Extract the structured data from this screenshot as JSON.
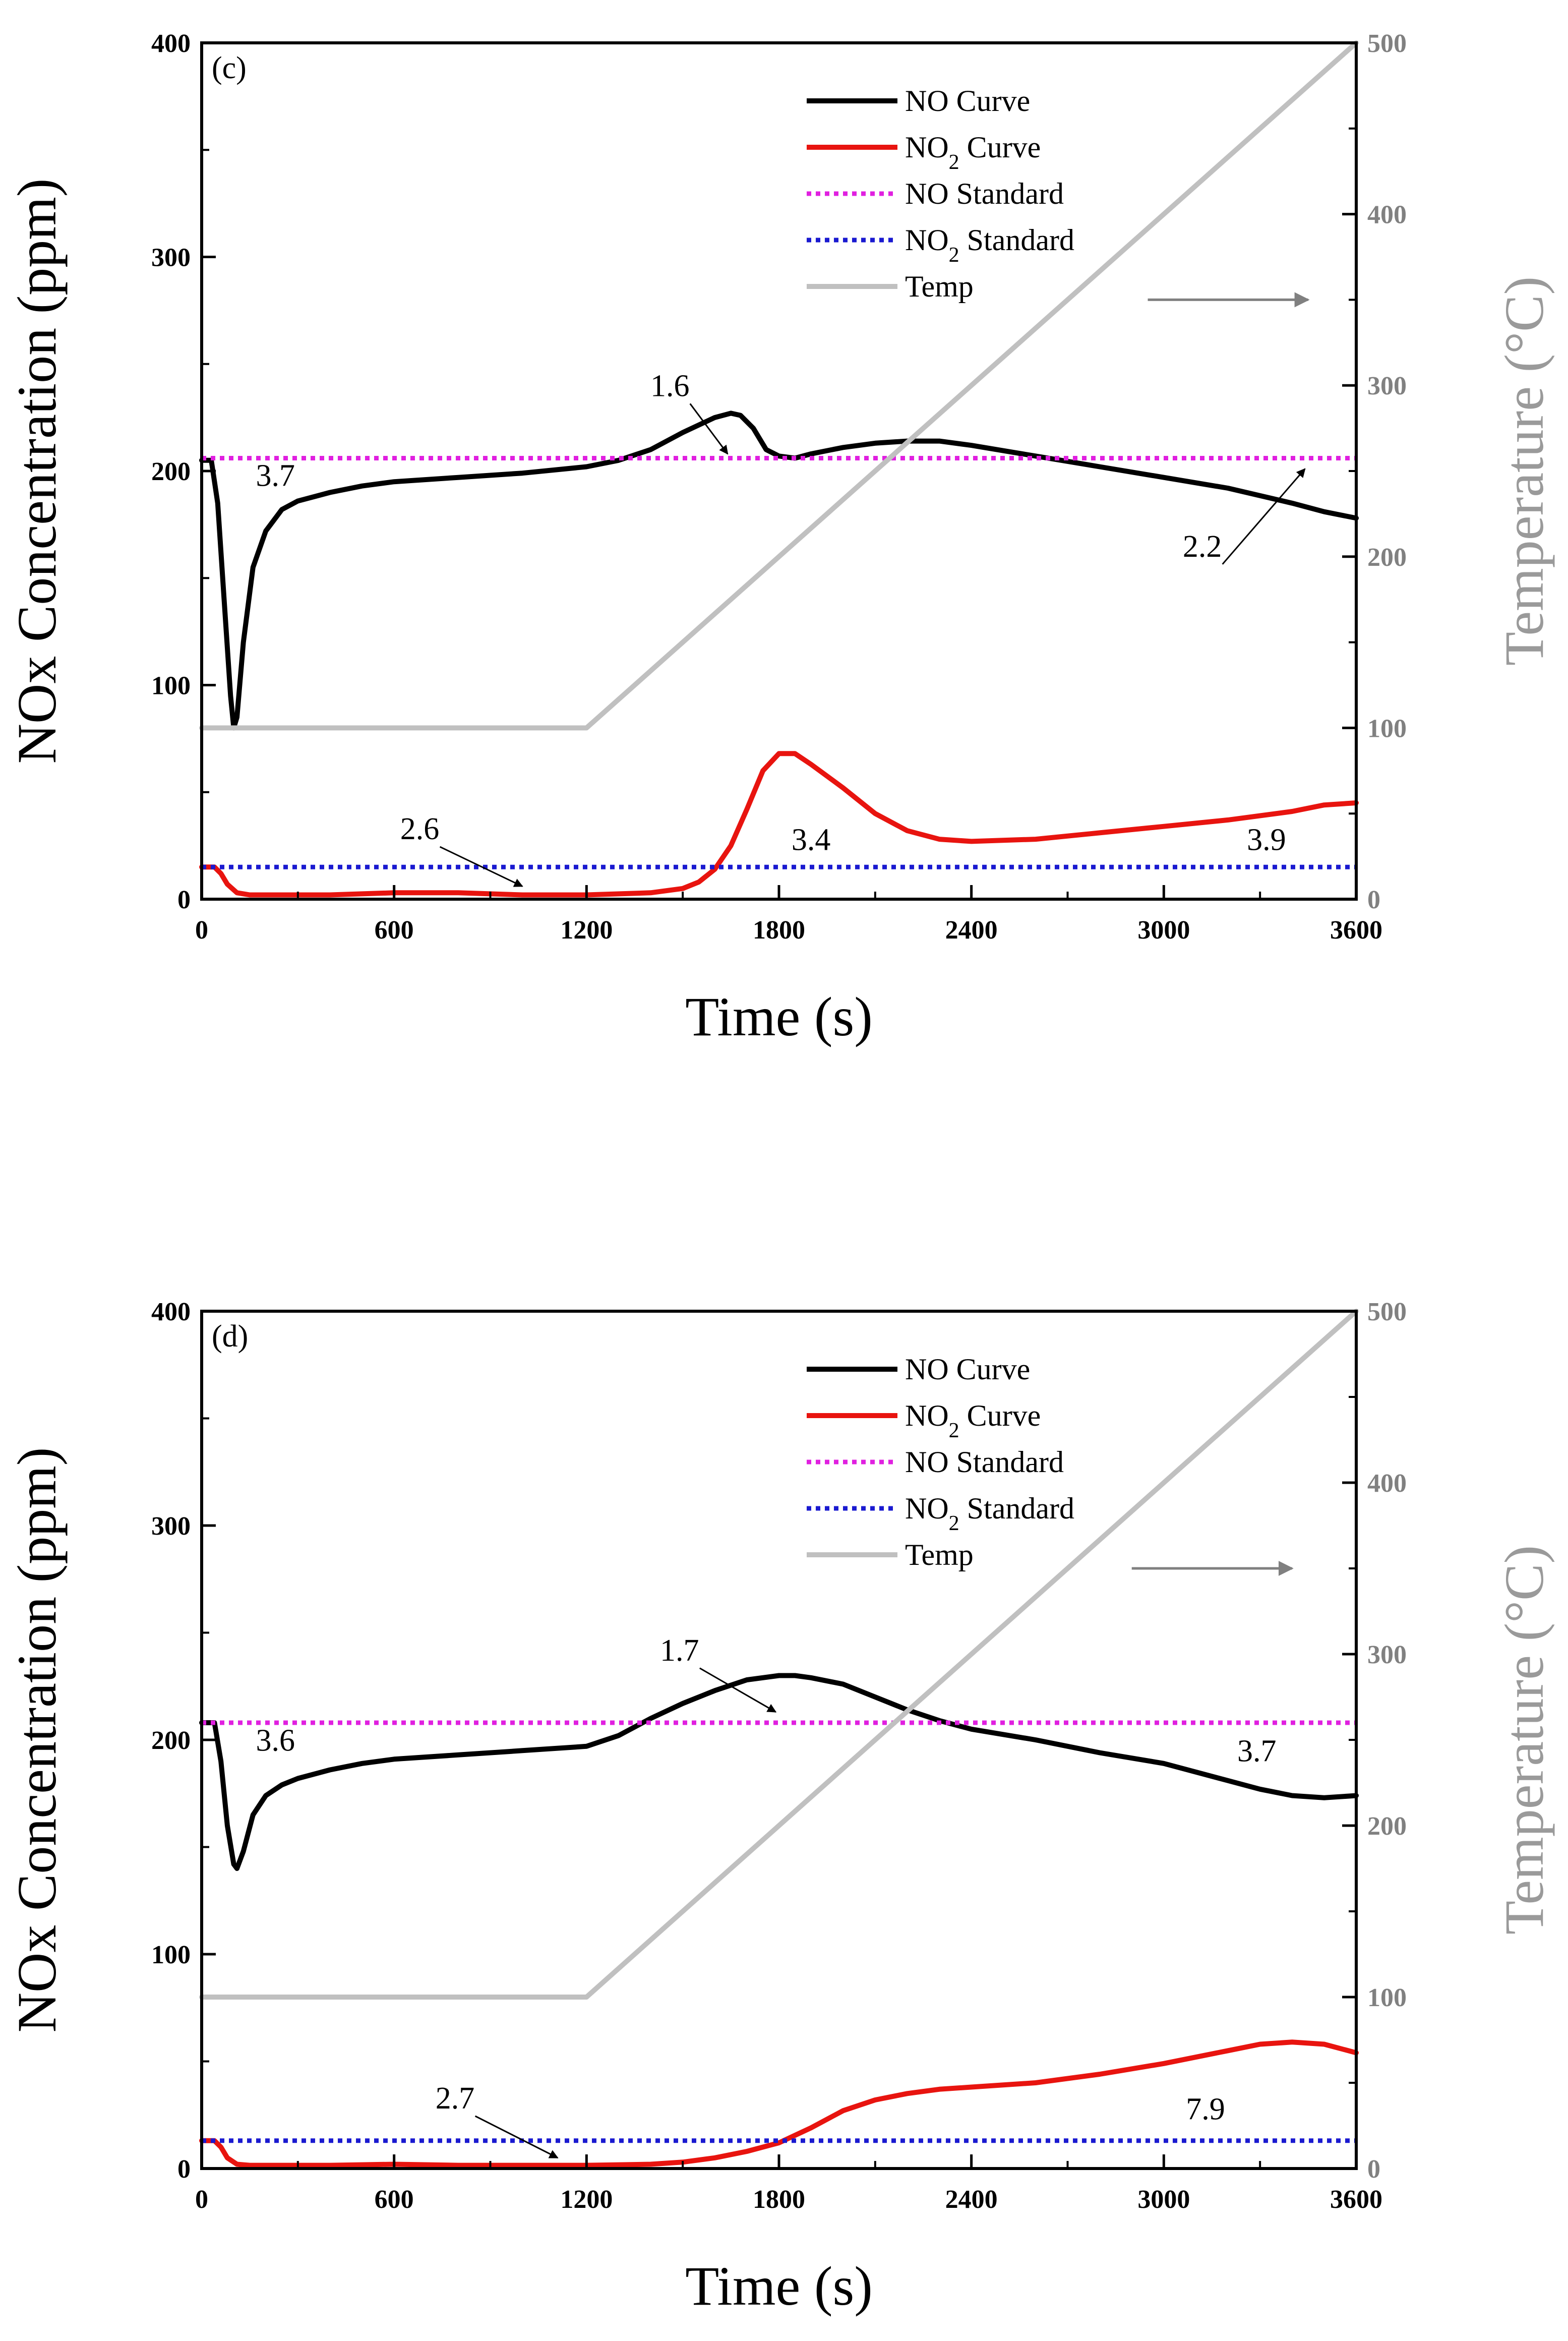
{
  "chart_data": [
    {
      "type": "line",
      "panel_label": "(c)",
      "xlabel": "Time (s)",
      "ylabel": "NOx Concentration (ppm)",
      "y2label": "Temperature (°C)",
      "x_ticks": [
        "0",
        "600",
        "1200",
        "1800",
        "2400",
        "3000",
        "3600"
      ],
      "y_ticks": [
        "0",
        "100",
        "200",
        "300",
        "400"
      ],
      "y2_ticks": [
        "0",
        "100",
        "200",
        "300",
        "400",
        "500"
      ],
      "xlim": [
        0,
        3600
      ],
      "ylim": [
        0,
        400
      ],
      "y2lim": [
        0,
        500
      ],
      "legend": {
        "position": "top-center",
        "entries": [
          {
            "name": "NO Curve",
            "color": "#000000",
            "style": "solid"
          },
          {
            "name": "NO₂ Curve",
            "color": "#e8140f",
            "style": "solid"
          },
          {
            "name": "NO Standard",
            "color": "#e020e0",
            "style": "dotted"
          },
          {
            "name": "NO₂ Standard",
            "color": "#1a1ad0",
            "style": "dotted"
          },
          {
            "name": "Temp",
            "color": "#c0c0c0",
            "style": "solid"
          }
        ]
      },
      "series": [
        {
          "name": "NO Curve",
          "axis": "left",
          "color": "#000000",
          "x": [
            0,
            30,
            50,
            70,
            90,
            100,
            110,
            130,
            160,
            200,
            250,
            300,
            400,
            500,
            600,
            800,
            1000,
            1200,
            1300,
            1400,
            1500,
            1600,
            1650,
            1680,
            1720,
            1760,
            1800,
            1850,
            1900,
            2000,
            2100,
            2200,
            2300,
            2400,
            2600,
            2800,
            3000,
            3200,
            3400,
            3500,
            3600
          ],
          "y": [
            205,
            205,
            185,
            140,
            95,
            80,
            85,
            120,
            155,
            172,
            182,
            186,
            190,
            193,
            195,
            197,
            199,
            202,
            205,
            210,
            218,
            225,
            227,
            226,
            220,
            210,
            207,
            206,
            208,
            211,
            213,
            214,
            214,
            212,
            207,
            202,
            197,
            192,
            185,
            181,
            178
          ]
        },
        {
          "name": "NO₂ Curve",
          "axis": "left",
          "color": "#e8140f",
          "x": [
            0,
            40,
            60,
            80,
            110,
            150,
            200,
            400,
            600,
            800,
            1000,
            1200,
            1400,
            1500,
            1550,
            1600,
            1650,
            1700,
            1750,
            1800,
            1850,
            1900,
            2000,
            2100,
            2200,
            2300,
            2400,
            2600,
            2800,
            3000,
            3200,
            3400,
            3500,
            3600
          ],
          "y": [
            15,
            15,
            12,
            7,
            3,
            2,
            2,
            2,
            3,
            3,
            2,
            2,
            3,
            5,
            8,
            14,
            25,
            42,
            60,
            68,
            68,
            63,
            52,
            40,
            32,
            28,
            27,
            28,
            31,
            34,
            37,
            41,
            44,
            45
          ]
        },
        {
          "name": "NO Standard",
          "axis": "left",
          "color": "#e020e0",
          "x": [
            0,
            3600
          ],
          "y": [
            206,
            206
          ]
        },
        {
          "name": "NO₂ Standard",
          "axis": "left",
          "color": "#1a1ad0",
          "x": [
            0,
            3600
          ],
          "y": [
            15,
            15
          ]
        },
        {
          "name": "Temp",
          "axis": "right",
          "color": "#c0c0c0",
          "x": [
            0,
            1200,
            3600
          ],
          "y": [
            100,
            100,
            500
          ]
        }
      ],
      "annotations": [
        {
          "text": "3.7",
          "x": 230,
          "y": 193
        },
        {
          "text": "1.6",
          "x": 1460,
          "y": 235,
          "arrow_to": [
            1640,
            208
          ]
        },
        {
          "text": "2.2",
          "x": 3120,
          "y": 160,
          "arrow_to": [
            3440,
            201
          ]
        },
        {
          "text": "2.6",
          "x": 680,
          "y": 28,
          "arrow_to": [
            1000,
            6
          ]
        },
        {
          "text": "3.4",
          "x": 1900,
          "y": 23
        },
        {
          "text": "3.9",
          "x": 3320,
          "y": 23
        }
      ],
      "arrow_legend": {
        "from": [
          2950,
          350
        ],
        "to": [
          3450,
          350
        ],
        "axis": "right",
        "color": "#808080"
      }
    },
    {
      "type": "line",
      "panel_label": "(d)",
      "xlabel": "Time (s)",
      "ylabel": "NOx Concentration (ppm)",
      "y2label": "Temperature (°C)",
      "x_ticks": [
        "0",
        "600",
        "1200",
        "1800",
        "2400",
        "3000",
        "3600"
      ],
      "y_ticks": [
        "0",
        "100",
        "200",
        "300",
        "400"
      ],
      "y2_ticks": [
        "0",
        "100",
        "200",
        "300",
        "400",
        "500"
      ],
      "xlim": [
        0,
        3600
      ],
      "ylim": [
        0,
        400
      ],
      "y2lim": [
        0,
        500
      ],
      "legend": {
        "position": "top-center",
        "entries": [
          {
            "name": "NO Curve",
            "color": "#000000",
            "style": "solid"
          },
          {
            "name": "NO₂ Curve",
            "color": "#e8140f",
            "style": "solid"
          },
          {
            "name": "NO Standard",
            "color": "#e020e0",
            "style": "dotted"
          },
          {
            "name": "NO₂ Standard",
            "color": "#1a1ad0",
            "style": "dotted"
          },
          {
            "name": "Temp",
            "color": "#c0c0c0",
            "style": "solid"
          }
        ]
      },
      "series": [
        {
          "name": "NO Curve",
          "axis": "left",
          "color": "#000000",
          "x": [
            0,
            40,
            60,
            80,
            100,
            110,
            130,
            160,
            200,
            250,
            300,
            400,
            500,
            600,
            800,
            1000,
            1200,
            1300,
            1400,
            1500,
            1600,
            1700,
            1800,
            1850,
            1900,
            2000,
            2100,
            2200,
            2300,
            2400,
            2600,
            2800,
            3000,
            3200,
            3300,
            3400,
            3500,
            3600
          ],
          "y": [
            208,
            208,
            190,
            160,
            142,
            140,
            148,
            165,
            174,
            179,
            182,
            186,
            189,
            191,
            193,
            195,
            197,
            202,
            210,
            217,
            223,
            228,
            230,
            230,
            229,
            226,
            220,
            214,
            209,
            205,
            200,
            194,
            189,
            181,
            177,
            174,
            173,
            174
          ]
        },
        {
          "name": "NO₂ Curve",
          "axis": "left",
          "color": "#e8140f",
          "x": [
            0,
            40,
            60,
            80,
            110,
            150,
            200,
            400,
            600,
            800,
            1000,
            1200,
            1400,
            1500,
            1600,
            1700,
            1800,
            1900,
            2000,
            2100,
            2200,
            2300,
            2400,
            2600,
            2800,
            3000,
            3200,
            3300,
            3400,
            3500,
            3600
          ],
          "y": [
            13,
            13,
            10,
            5,
            2,
            1.5,
            1.5,
            1.5,
            2,
            1.5,
            1.5,
            1.5,
            2,
            3,
            5,
            8,
            12,
            19,
            27,
            32,
            35,
            37,
            38,
            40,
            44,
            49,
            55,
            58,
            59,
            58,
            54
          ]
        },
        {
          "name": "NO Standard",
          "axis": "left",
          "color": "#e020e0",
          "x": [
            0,
            3600
          ],
          "y": [
            208,
            208
          ]
        },
        {
          "name": "NO₂ Standard",
          "axis": "left",
          "color": "#1a1ad0",
          "x": [
            0,
            3600
          ],
          "y": [
            13,
            13
          ]
        },
        {
          "name": "Temp",
          "axis": "right",
          "color": "#c0c0c0",
          "x": [
            0,
            1200,
            3600
          ],
          "y": [
            100,
            100,
            500
          ]
        }
      ],
      "annotations": [
        {
          "text": "3.6",
          "x": 230,
          "y": 195
        },
        {
          "text": "1.7",
          "x": 1490,
          "y": 237,
          "arrow_to": [
            1790,
            213
          ]
        },
        {
          "text": "3.7",
          "x": 3290,
          "y": 190
        },
        {
          "text": "2.7",
          "x": 790,
          "y": 28,
          "arrow_to": [
            1110,
            5
          ]
        },
        {
          "text": "7.9",
          "x": 3130,
          "y": 23
        }
      ],
      "arrow_legend": {
        "from": [
          2900,
          350
        ],
        "to": [
          3400,
          350
        ],
        "axis": "right",
        "color": "#808080"
      }
    }
  ]
}
